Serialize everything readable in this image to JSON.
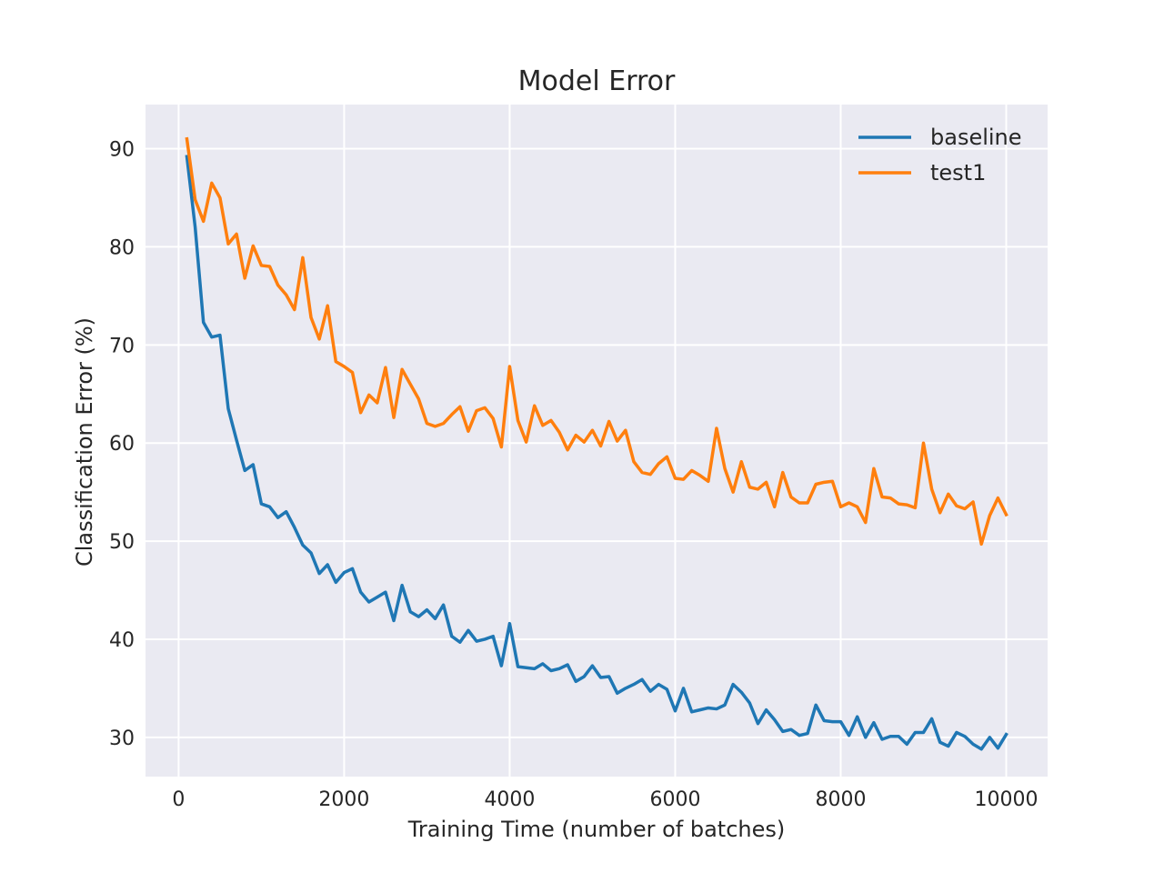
{
  "chart_data": {
    "type": "line",
    "title": "Model Error",
    "xlabel": "Training Time (number of batches)",
    "ylabel": "Classification Error (%)",
    "xlim": [
      -400,
      10500
    ],
    "ylim": [
      26,
      94.5
    ],
    "xticks": [
      0,
      2000,
      4000,
      6000,
      8000,
      10000
    ],
    "yticks": [
      30,
      40,
      50,
      60,
      70,
      80,
      90
    ],
    "grid": true,
    "legend_position": "top-right",
    "background": "#eaeaf2",
    "x": [
      100,
      200,
      300,
      400,
      500,
      600,
      700,
      800,
      900,
      1000,
      1100,
      1200,
      1300,
      1400,
      1500,
      1600,
      1700,
      1800,
      1900,
      2000,
      2100,
      2200,
      2300,
      2400,
      2500,
      2600,
      2700,
      2800,
      2900,
      3000,
      3100,
      3200,
      3300,
      3400,
      3500,
      3600,
      3700,
      3800,
      3900,
      4000,
      4100,
      4200,
      4300,
      4400,
      4500,
      4600,
      4700,
      4800,
      4900,
      5000,
      5100,
      5200,
      5300,
      5400,
      5500,
      5600,
      5700,
      5800,
      5900,
      6000,
      6100,
      6200,
      6300,
      6400,
      6500,
      6600,
      6700,
      6800,
      6900,
      7000,
      7100,
      7200,
      7300,
      7400,
      7500,
      7600,
      7700,
      7800,
      7900,
      8000,
      8100,
      8200,
      8300,
      8400,
      8500,
      8600,
      8700,
      8800,
      8900,
      9000,
      9100,
      9200,
      9300,
      9400,
      9500,
      9600,
      9700,
      9800,
      9900,
      10000
    ],
    "series": [
      {
        "name": "baseline",
        "color": "#1f77b4",
        "values": [
          89.2,
          82.0,
          72.3,
          70.8,
          71.0,
          63.5,
          60.3,
          57.2,
          57.8,
          53.8,
          53.5,
          52.4,
          53.0,
          51.4,
          49.6,
          48.8,
          46.7,
          47.6,
          45.8,
          46.8,
          47.2,
          44.8,
          43.8,
          44.3,
          44.8,
          41.9,
          45.5,
          42.8,
          42.3,
          43.0,
          42.1,
          43.5,
          40.3,
          39.7,
          40.9,
          39.8,
          40.0,
          40.3,
          37.3,
          41.6,
          37.2,
          37.1,
          37.0,
          37.5,
          36.8,
          37.0,
          37.4,
          35.7,
          36.2,
          37.3,
          36.1,
          36.2,
          34.5,
          35.0,
          35.4,
          35.9,
          34.7,
          35.4,
          34.9,
          32.7,
          35.0,
          32.6,
          32.8,
          33.0,
          32.9,
          33.3,
          35.4,
          34.6,
          33.5,
          31.4,
          32.8,
          31.8,
          30.6,
          30.8,
          30.2,
          30.4,
          33.3,
          31.7,
          31.6,
          31.6,
          30.2,
          32.1,
          30.0,
          31.5,
          29.8,
          30.1,
          30.1,
          29.3,
          30.5,
          30.5,
          31.9,
          29.5,
          29.1,
          30.5,
          30.1,
          29.3,
          28.8,
          30.0,
          28.9,
          30.3
        ]
      },
      {
        "name": "test1",
        "color": "#ff7f0e",
        "values": [
          91.0,
          84.8,
          82.6,
          86.5,
          85.0,
          80.3,
          81.3,
          76.8,
          80.1,
          78.1,
          78.0,
          76.1,
          75.1,
          73.6,
          78.9,
          72.8,
          70.6,
          74.0,
          68.3,
          67.8,
          67.2,
          63.1,
          64.9,
          64.1,
          67.7,
          62.6,
          67.5,
          66.0,
          64.5,
          62.0,
          61.7,
          62.0,
          62.9,
          63.7,
          61.2,
          63.3,
          63.6,
          62.5,
          59.6,
          67.8,
          62.3,
          60.1,
          63.8,
          61.8,
          62.3,
          61.1,
          59.3,
          60.8,
          60.1,
          61.3,
          59.7,
          62.2,
          60.2,
          61.3,
          58.1,
          57.0,
          56.8,
          57.9,
          58.6,
          56.4,
          56.3,
          57.2,
          56.7,
          56.1,
          61.5,
          57.4,
          55.0,
          58.1,
          55.5,
          55.3,
          56.0,
          53.5,
          57.0,
          54.5,
          53.9,
          53.9,
          55.8,
          56.0,
          56.1,
          53.5,
          53.9,
          53.5,
          51.9,
          57.4,
          54.5,
          54.4,
          53.8,
          53.7,
          53.4,
          60.0,
          55.3,
          52.9,
          54.8,
          53.6,
          53.3,
          54.0,
          49.7,
          52.6,
          54.4,
          52.7
        ]
      }
    ]
  }
}
